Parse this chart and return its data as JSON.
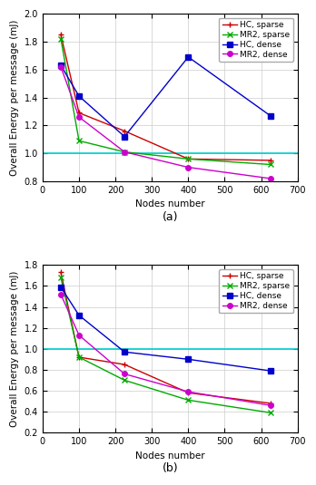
{
  "subplot_a": {
    "title": "(a)",
    "xlabel": "Nodes number",
    "ylabel": "Overall Energy per message (mJ)",
    "xlim": [
      0,
      700
    ],
    "ylim": [
      0.8,
      2.0
    ],
    "yticks": [
      0.8,
      1.0,
      1.2,
      1.4,
      1.6,
      1.8,
      2.0
    ],
    "xticks": [
      0,
      100,
      200,
      300,
      400,
      500,
      600,
      700
    ],
    "hline": 1.0,
    "hline_color": "#00cccc",
    "series": [
      {
        "label": "HC, sparse",
        "color": "#cc0000",
        "marker": "+",
        "x": [
          50,
          100,
          225,
          400,
          625
        ],
        "y": [
          1.85,
          1.29,
          1.16,
          0.96,
          0.95
        ]
      },
      {
        "label": "MR2, sparse",
        "color": "#00aa00",
        "marker": "x",
        "x": [
          50,
          100,
          225,
          400,
          625
        ],
        "y": [
          1.82,
          1.09,
          1.01,
          0.96,
          0.92
        ]
      },
      {
        "label": "HC, dense",
        "color": "#0000cc",
        "marker": "s",
        "x": [
          50,
          100,
          225,
          400,
          625
        ],
        "y": [
          1.63,
          1.41,
          1.12,
          1.69,
          1.27
        ]
      },
      {
        "label": "MR2, dense",
        "color": "#cc00cc",
        "marker": "o",
        "x": [
          50,
          100,
          225,
          400,
          625
        ],
        "y": [
          1.62,
          1.26,
          1.01,
          0.9,
          0.82
        ]
      }
    ]
  },
  "subplot_b": {
    "title": "(b)",
    "xlabel": "Nodes number",
    "ylabel": "Overall Energy per message (mJ)",
    "xlim": [
      0,
      700
    ],
    "ylim": [
      0.2,
      1.8
    ],
    "yticks": [
      0.2,
      0.4,
      0.6,
      0.8,
      1.0,
      1.2,
      1.4,
      1.6,
      1.8
    ],
    "xticks": [
      0,
      100,
      200,
      300,
      400,
      500,
      600,
      700
    ],
    "hline": 1.0,
    "hline_color": "#00cccc",
    "series": [
      {
        "label": "HC, sparse",
        "color": "#cc0000",
        "marker": "+",
        "x": [
          50,
          100,
          225,
          400,
          625
        ],
        "y": [
          1.73,
          0.92,
          0.85,
          0.58,
          0.48
        ]
      },
      {
        "label": "MR2, sparse",
        "color": "#00aa00",
        "marker": "x",
        "x": [
          50,
          100,
          225,
          400,
          625
        ],
        "y": [
          1.68,
          0.92,
          0.7,
          0.51,
          0.39
        ]
      },
      {
        "label": "HC, dense",
        "color": "#0000cc",
        "marker": "s",
        "x": [
          50,
          100,
          225,
          400,
          625
        ],
        "y": [
          1.59,
          1.32,
          0.97,
          0.9,
          0.79
        ]
      },
      {
        "label": "MR2, dense",
        "color": "#cc00cc",
        "marker": "o",
        "x": [
          50,
          100,
          225,
          400,
          625
        ],
        "y": [
          1.52,
          1.13,
          0.76,
          0.59,
          0.46
        ]
      }
    ]
  },
  "legend_fontsize": 6.5,
  "axis_fontsize": 7.5,
  "tick_fontsize": 7,
  "title_fontsize": 9,
  "linewidth": 1.0,
  "markersize": 4,
  "figure_facecolor": "#ffffff",
  "axes_facecolor": "#ffffff",
  "grid_color": "#cccccc"
}
